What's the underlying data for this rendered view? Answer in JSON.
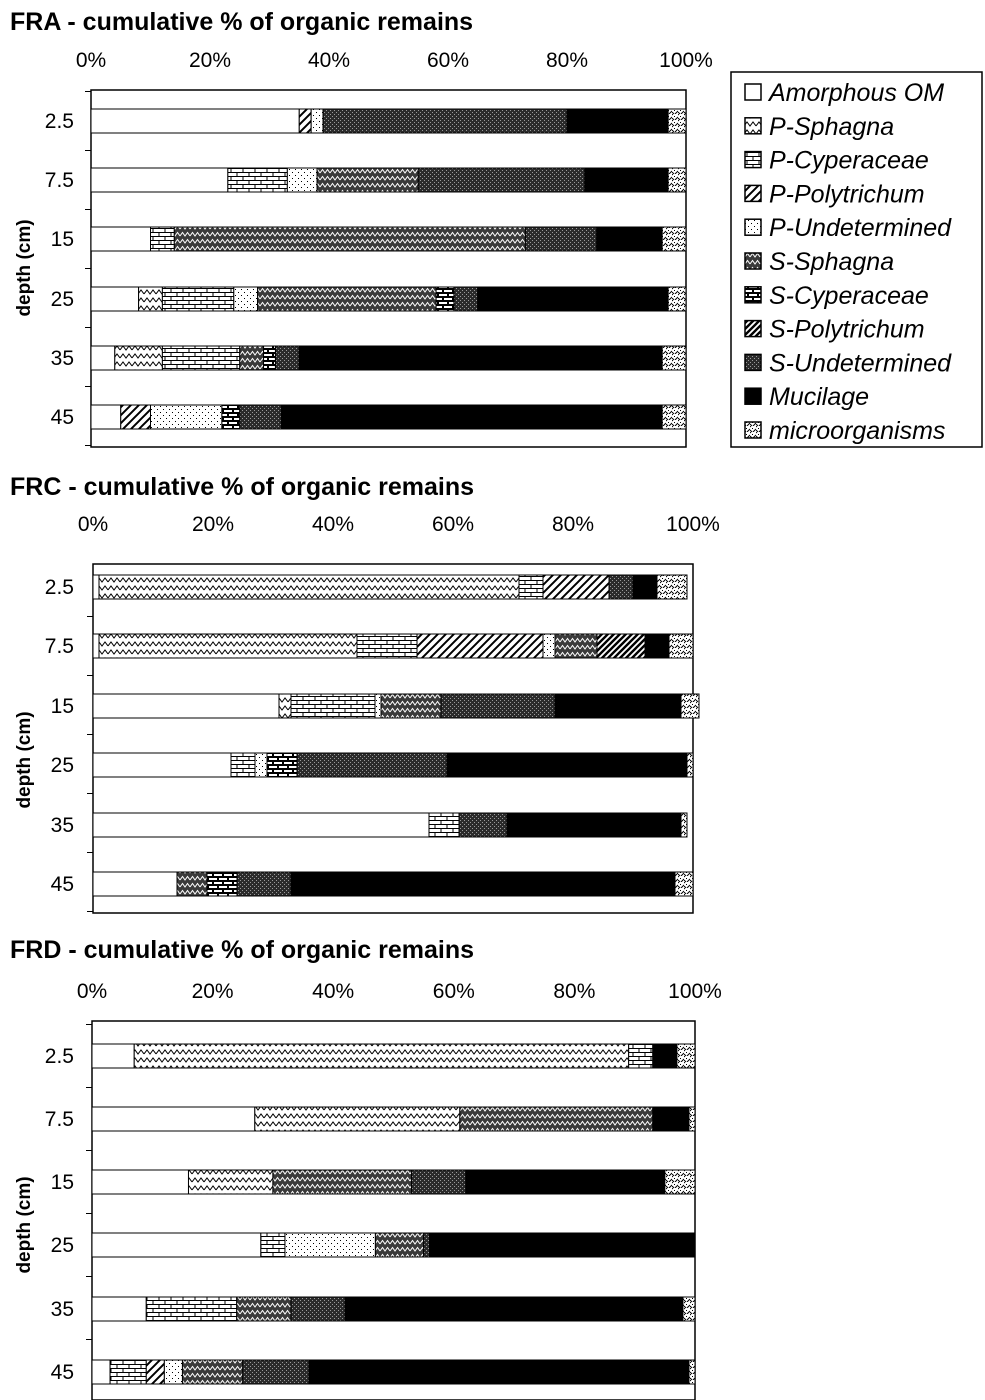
{
  "chart_data": [
    {
      "type": "bar",
      "title": "FRA - cumulative % of organic remains",
      "ylabel": "depth (cm)",
      "xticks": [
        "0%",
        "20%",
        "40%",
        "60%",
        "80%",
        "100%"
      ],
      "categories": [
        "2.5",
        "7.5",
        "15",
        "25",
        "35",
        "45"
      ],
      "series": [
        {
          "name": "Amorphous OM",
          "values": [
            35,
            23,
            10,
            8,
            4,
            5
          ]
        },
        {
          "name": "P-Sphagna",
          "values": [
            0,
            0,
            0,
            4,
            8,
            0
          ]
        },
        {
          "name": "P-Cyperaceae",
          "values": [
            0,
            10,
            4,
            12,
            13,
            0
          ]
        },
        {
          "name": "P-Polytrichum",
          "values": [
            2,
            0,
            0,
            0,
            0,
            5
          ]
        },
        {
          "name": "P-Undetermined",
          "values": [
            2,
            5,
            0,
            4,
            0,
            12
          ]
        },
        {
          "name": "S-Sphagna",
          "values": [
            0,
            17,
            59,
            30,
            4,
            0
          ]
        },
        {
          "name": "S-Cyperaceae",
          "values": [
            0,
            0,
            0,
            3,
            2,
            3
          ]
        },
        {
          "name": "S-Polytrichum",
          "values": [
            0,
            0,
            0,
            0,
            0,
            0
          ]
        },
        {
          "name": "S-Undetermined",
          "values": [
            41,
            28,
            12,
            4,
            4,
            7
          ]
        },
        {
          "name": "Mucilage",
          "values": [
            17,
            14,
            11,
            32,
            61,
            64
          ]
        },
        {
          "name": "microorganisms",
          "values": [
            3,
            3,
            4,
            3,
            4,
            4
          ]
        }
      ]
    },
    {
      "type": "bar",
      "title": "FRC - cumulative % of organic remains",
      "ylabel": "depth (cm)",
      "xticks": [
        "0%",
        "20%",
        "40%",
        "60%",
        "80%",
        "100%"
      ],
      "categories": [
        "2.5",
        "7.5",
        "15",
        "25",
        "35",
        "45"
      ],
      "series": [
        {
          "name": "Amorphous OM",
          "values": [
            1,
            1,
            31,
            23,
            56,
            14
          ]
        },
        {
          "name": "P-Sphagna",
          "values": [
            70,
            43,
            2,
            0,
            0,
            0
          ]
        },
        {
          "name": "P-Cyperaceae",
          "values": [
            4,
            10,
            14,
            4,
            5,
            0
          ]
        },
        {
          "name": "P-Polytrichum",
          "values": [
            11,
            21,
            0,
            0,
            0,
            0
          ]
        },
        {
          "name": "P-Undetermined",
          "values": [
            0,
            2,
            1,
            2,
            0,
            0
          ]
        },
        {
          "name": "S-Sphagna",
          "values": [
            0,
            7,
            10,
            0,
            0,
            5
          ]
        },
        {
          "name": "S-Cyperaceae",
          "values": [
            0,
            0,
            0,
            5,
            0,
            5
          ]
        },
        {
          "name": "S-Polytrichum",
          "values": [
            0,
            8,
            0,
            0,
            0,
            0
          ]
        },
        {
          "name": "S-Undetermined",
          "values": [
            4,
            0,
            19,
            25,
            8,
            9
          ]
        },
        {
          "name": "Mucilage",
          "values": [
            4,
            4,
            21,
            40,
            29,
            64
          ]
        },
        {
          "name": "microorganisms",
          "values": [
            5,
            4,
            3,
            1,
            1,
            3
          ]
        }
      ]
    },
    {
      "type": "bar",
      "title": "FRD - cumulative % of organic remains",
      "ylabel": "depth (cm)",
      "xticks": [
        "0%",
        "20%",
        "40%",
        "60%",
        "80%",
        "100%"
      ],
      "categories": [
        "2.5",
        "7.5",
        "15",
        "25",
        "35",
        "45"
      ],
      "series": [
        {
          "name": "Amorphous OM",
          "values": [
            7,
            27,
            16,
            28,
            9,
            3
          ]
        },
        {
          "name": "P-Sphagna",
          "values": [
            82,
            34,
            14,
            0,
            0,
            0
          ]
        },
        {
          "name": "P-Cyperaceae",
          "values": [
            4,
            0,
            0,
            4,
            15,
            6
          ]
        },
        {
          "name": "P-Polytrichum",
          "values": [
            0,
            0,
            0,
            0,
            0,
            3
          ]
        },
        {
          "name": "P-Undetermined",
          "values": [
            0,
            0,
            0,
            15,
            0,
            3
          ]
        },
        {
          "name": "S-Sphagna",
          "values": [
            0,
            32,
            23,
            8,
            9,
            10
          ]
        },
        {
          "name": "S-Cyperaceae",
          "values": [
            0,
            0,
            0,
            0,
            0,
            0
          ]
        },
        {
          "name": "S-Polytrichum",
          "values": [
            0,
            0,
            0,
            0,
            0,
            0
          ]
        },
        {
          "name": "S-Undetermined",
          "values": [
            0,
            0,
            9,
            1,
            9,
            11
          ]
        },
        {
          "name": "Mucilage",
          "values": [
            4,
            6,
            33,
            44,
            56,
            63
          ]
        },
        {
          "name": "microorganisms",
          "values": [
            3,
            1,
            5,
            0,
            2,
            1
          ]
        }
      ]
    }
  ],
  "legend": {
    "entries": [
      {
        "label": "Amorphous OM",
        "pattern": "amorphous"
      },
      {
        "label": "P-Sphagna",
        "pattern": "p-sphagna"
      },
      {
        "label": "P-Cyperaceae",
        "pattern": "p-cyperaceae"
      },
      {
        "label": "P-Polytrichum",
        "pattern": "p-polytrichum"
      },
      {
        "label": "P-Undetermined",
        "pattern": "p-undetermined"
      },
      {
        "label": "S-Sphagna",
        "pattern": "s-sphagna"
      },
      {
        "label": "S-Cyperaceae",
        "pattern": "s-cyperaceae"
      },
      {
        "label": "S-Polytrichum",
        "pattern": "s-polytrichum"
      },
      {
        "label": "S-Undetermined",
        "pattern": "s-undetermined"
      },
      {
        "label": "Mucilage",
        "pattern": "mucilage"
      },
      {
        "label": "microorganisms",
        "pattern": "microorganisms"
      }
    ]
  }
}
